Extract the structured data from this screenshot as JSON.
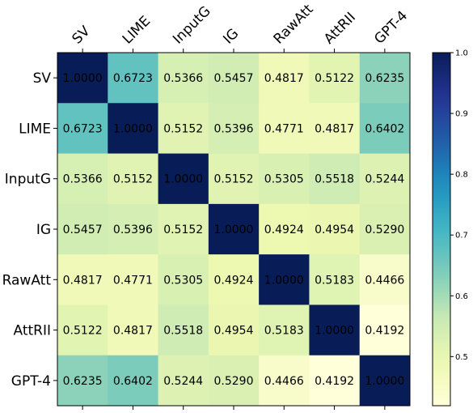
{
  "chart_data": {
    "type": "heatmap",
    "title": "",
    "xlabel": "",
    "ylabel": "",
    "x_categories": [
      "SV",
      "LIME",
      "InputG",
      "IG",
      "RawAtt",
      "AttRII",
      "GPT-4"
    ],
    "y_categories": [
      "SV",
      "LIME",
      "InputG",
      "IG",
      "RawAtt",
      "AttRII",
      "GPT-4"
    ],
    "values": [
      [
        1.0,
        0.6723,
        0.5366,
        0.5457,
        0.4817,
        0.5122,
        0.6235
      ],
      [
        0.6723,
        1.0,
        0.5152,
        0.5396,
        0.4771,
        0.4817,
        0.6402
      ],
      [
        0.5366,
        0.5152,
        1.0,
        0.5152,
        0.5305,
        0.5518,
        0.5244
      ],
      [
        0.5457,
        0.5396,
        0.5152,
        1.0,
        0.4924,
        0.4954,
        0.529
      ],
      [
        0.4817,
        0.4771,
        0.5305,
        0.4924,
        1.0,
        0.5183,
        0.4466
      ],
      [
        0.5122,
        0.4817,
        0.5518,
        0.4954,
        0.5183,
        1.0,
        0.4192
      ],
      [
        0.6235,
        0.6402,
        0.5244,
        0.529,
        0.4466,
        0.4192,
        1.0
      ]
    ],
    "value_labels": [
      [
        "1.0000",
        "0.6723",
        "0.5366",
        "0.5457",
        "0.4817",
        "0.5122",
        "0.6235"
      ],
      [
        "0.6723",
        "1.0000",
        "0.5152",
        "0.5396",
        "0.4771",
        "0.4817",
        "0.6402"
      ],
      [
        "0.5366",
        "0.5152",
        "1.0000",
        "0.5152",
        "0.5305",
        "0.5518",
        "0.5244"
      ],
      [
        "0.5457",
        "0.5396",
        "0.5152",
        "1.0000",
        "0.4924",
        "0.4954",
        "0.5290"
      ],
      [
        "0.4817",
        "0.4771",
        "0.5305",
        "0.4924",
        "1.0000",
        "0.5183",
        "0.4466"
      ],
      [
        "0.5122",
        "0.4817",
        "0.5518",
        "0.4954",
        "0.5183",
        "1.0000",
        "0.4192"
      ],
      [
        "0.6235",
        "0.6402",
        "0.5244",
        "0.5290",
        "0.4466",
        "0.4192",
        "1.0000"
      ]
    ],
    "colormap": "YlGnBu",
    "color_range": [
      0.4192,
      1.0
    ],
    "colorbar": {
      "ticks": [
        0.5,
        0.6,
        0.7,
        0.8,
        0.9,
        1.0
      ],
      "tick_labels": [
        "0.5",
        "0.6",
        "0.7",
        "0.8",
        "0.9",
        "1.0"
      ]
    },
    "x_tick_position": "top",
    "x_tick_rotation": "45deg",
    "grid": false
  }
}
